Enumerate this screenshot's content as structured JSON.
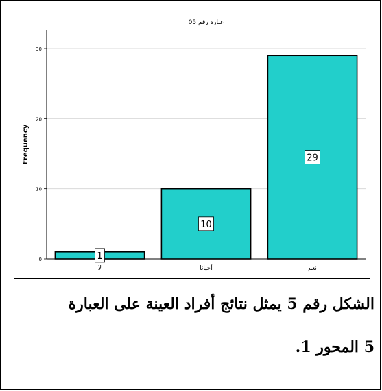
{
  "chart_data": {
    "type": "bar",
    "title": "عبارة رقم 05",
    "categories": [
      "لا",
      "أحيانا",
      "نعم"
    ],
    "values": [
      1,
      10,
      29
    ],
    "data_labels": [
      "1",
      "10",
      "29"
    ],
    "ylabel": "Frequency",
    "xlabel": "",
    "ylim": [
      0,
      30
    ],
    "yticks": [
      "0",
      "10",
      "20",
      "30"
    ],
    "grid": true,
    "bar_color": "#22cfcb",
    "bar_stroke": "#000000"
  },
  "caption": {
    "line1": "الشكل رقم 5 يمثل نتائج أفراد العينة على العبارة",
    "line2": "5 المحور 1."
  }
}
